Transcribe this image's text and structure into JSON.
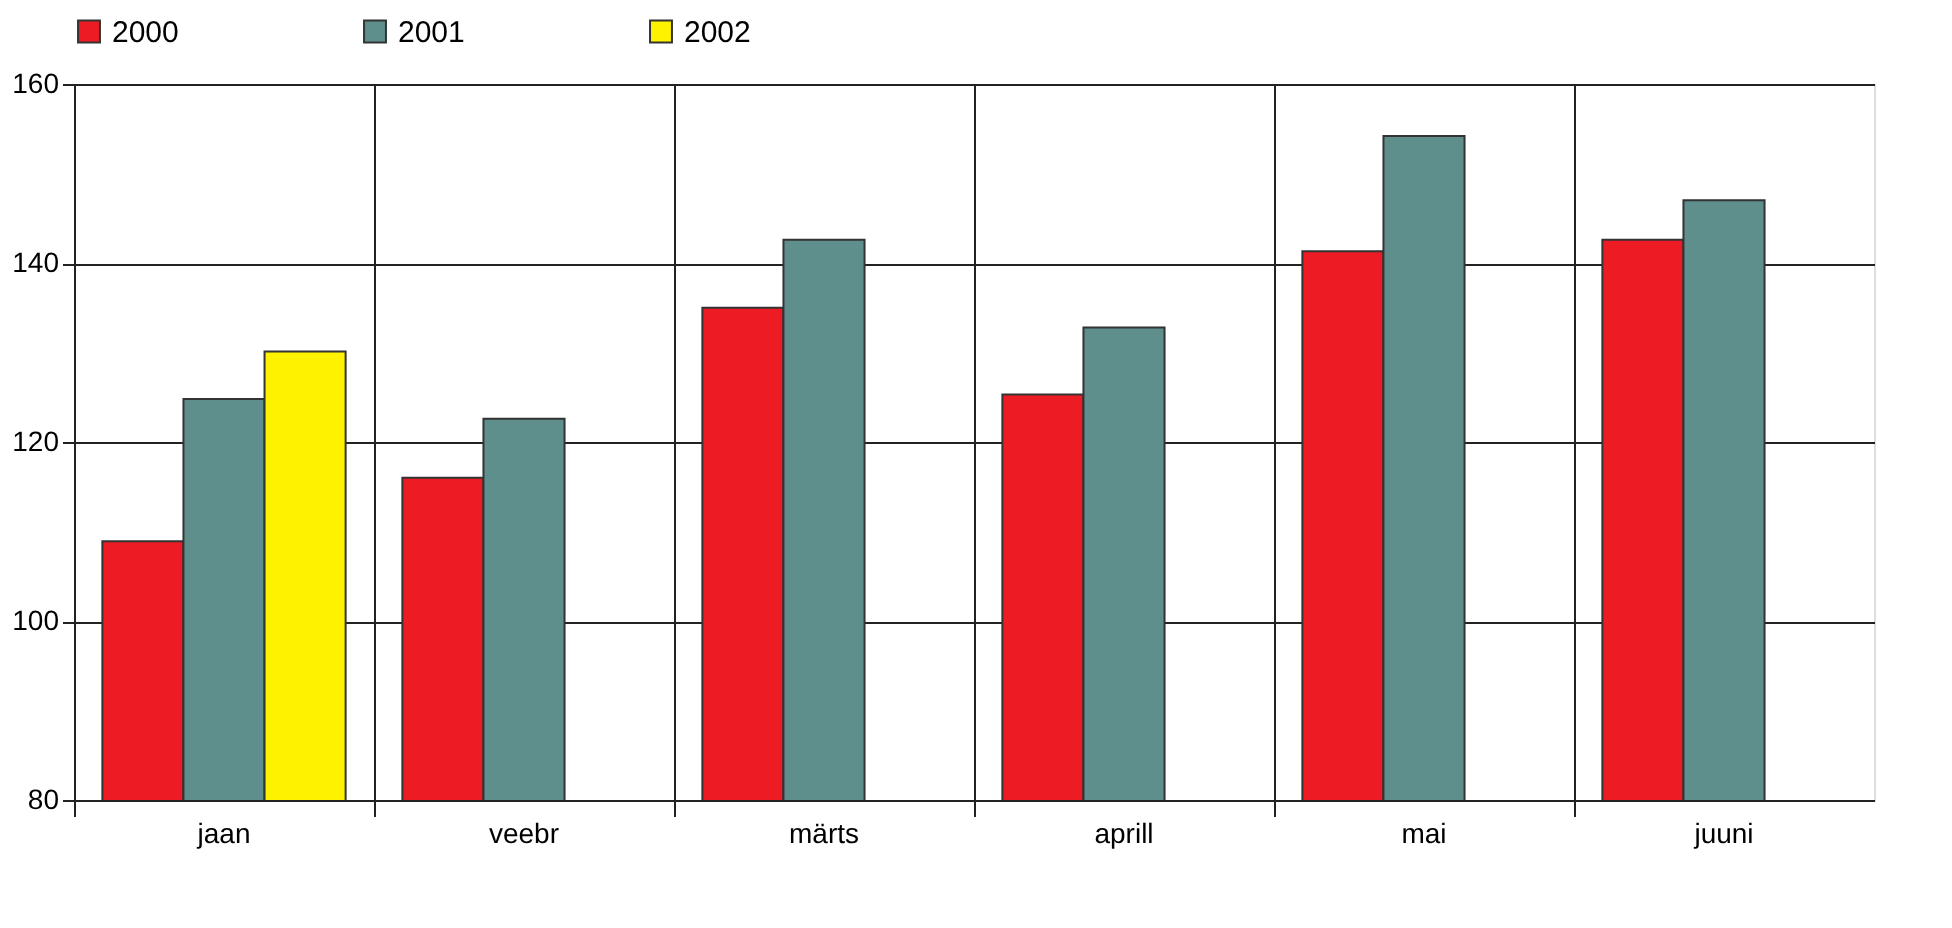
{
  "chart_data": {
    "type": "bar",
    "categories": [
      "jaan",
      "veebr",
      "märts",
      "aprill",
      "mai",
      "juuni"
    ],
    "series": [
      {
        "name": "2000",
        "color": "#ed1c24",
        "values": [
          108.9,
          116,
          135,
          125.3,
          141.3,
          142.6
        ]
      },
      {
        "name": "2001",
        "color": "#5f8f8c",
        "values": [
          124.8,
          122.6,
          142.6,
          132.8,
          154.2,
          147
        ]
      },
      {
        "name": "2002",
        "color": "#fff200",
        "values": [
          130.1,
          null,
          null,
          null,
          null,
          null
        ]
      }
    ],
    "ylim": [
      80,
      160
    ],
    "yticks": [
      80,
      100,
      120,
      140,
      160
    ],
    "grid": true,
    "legend": "top"
  }
}
